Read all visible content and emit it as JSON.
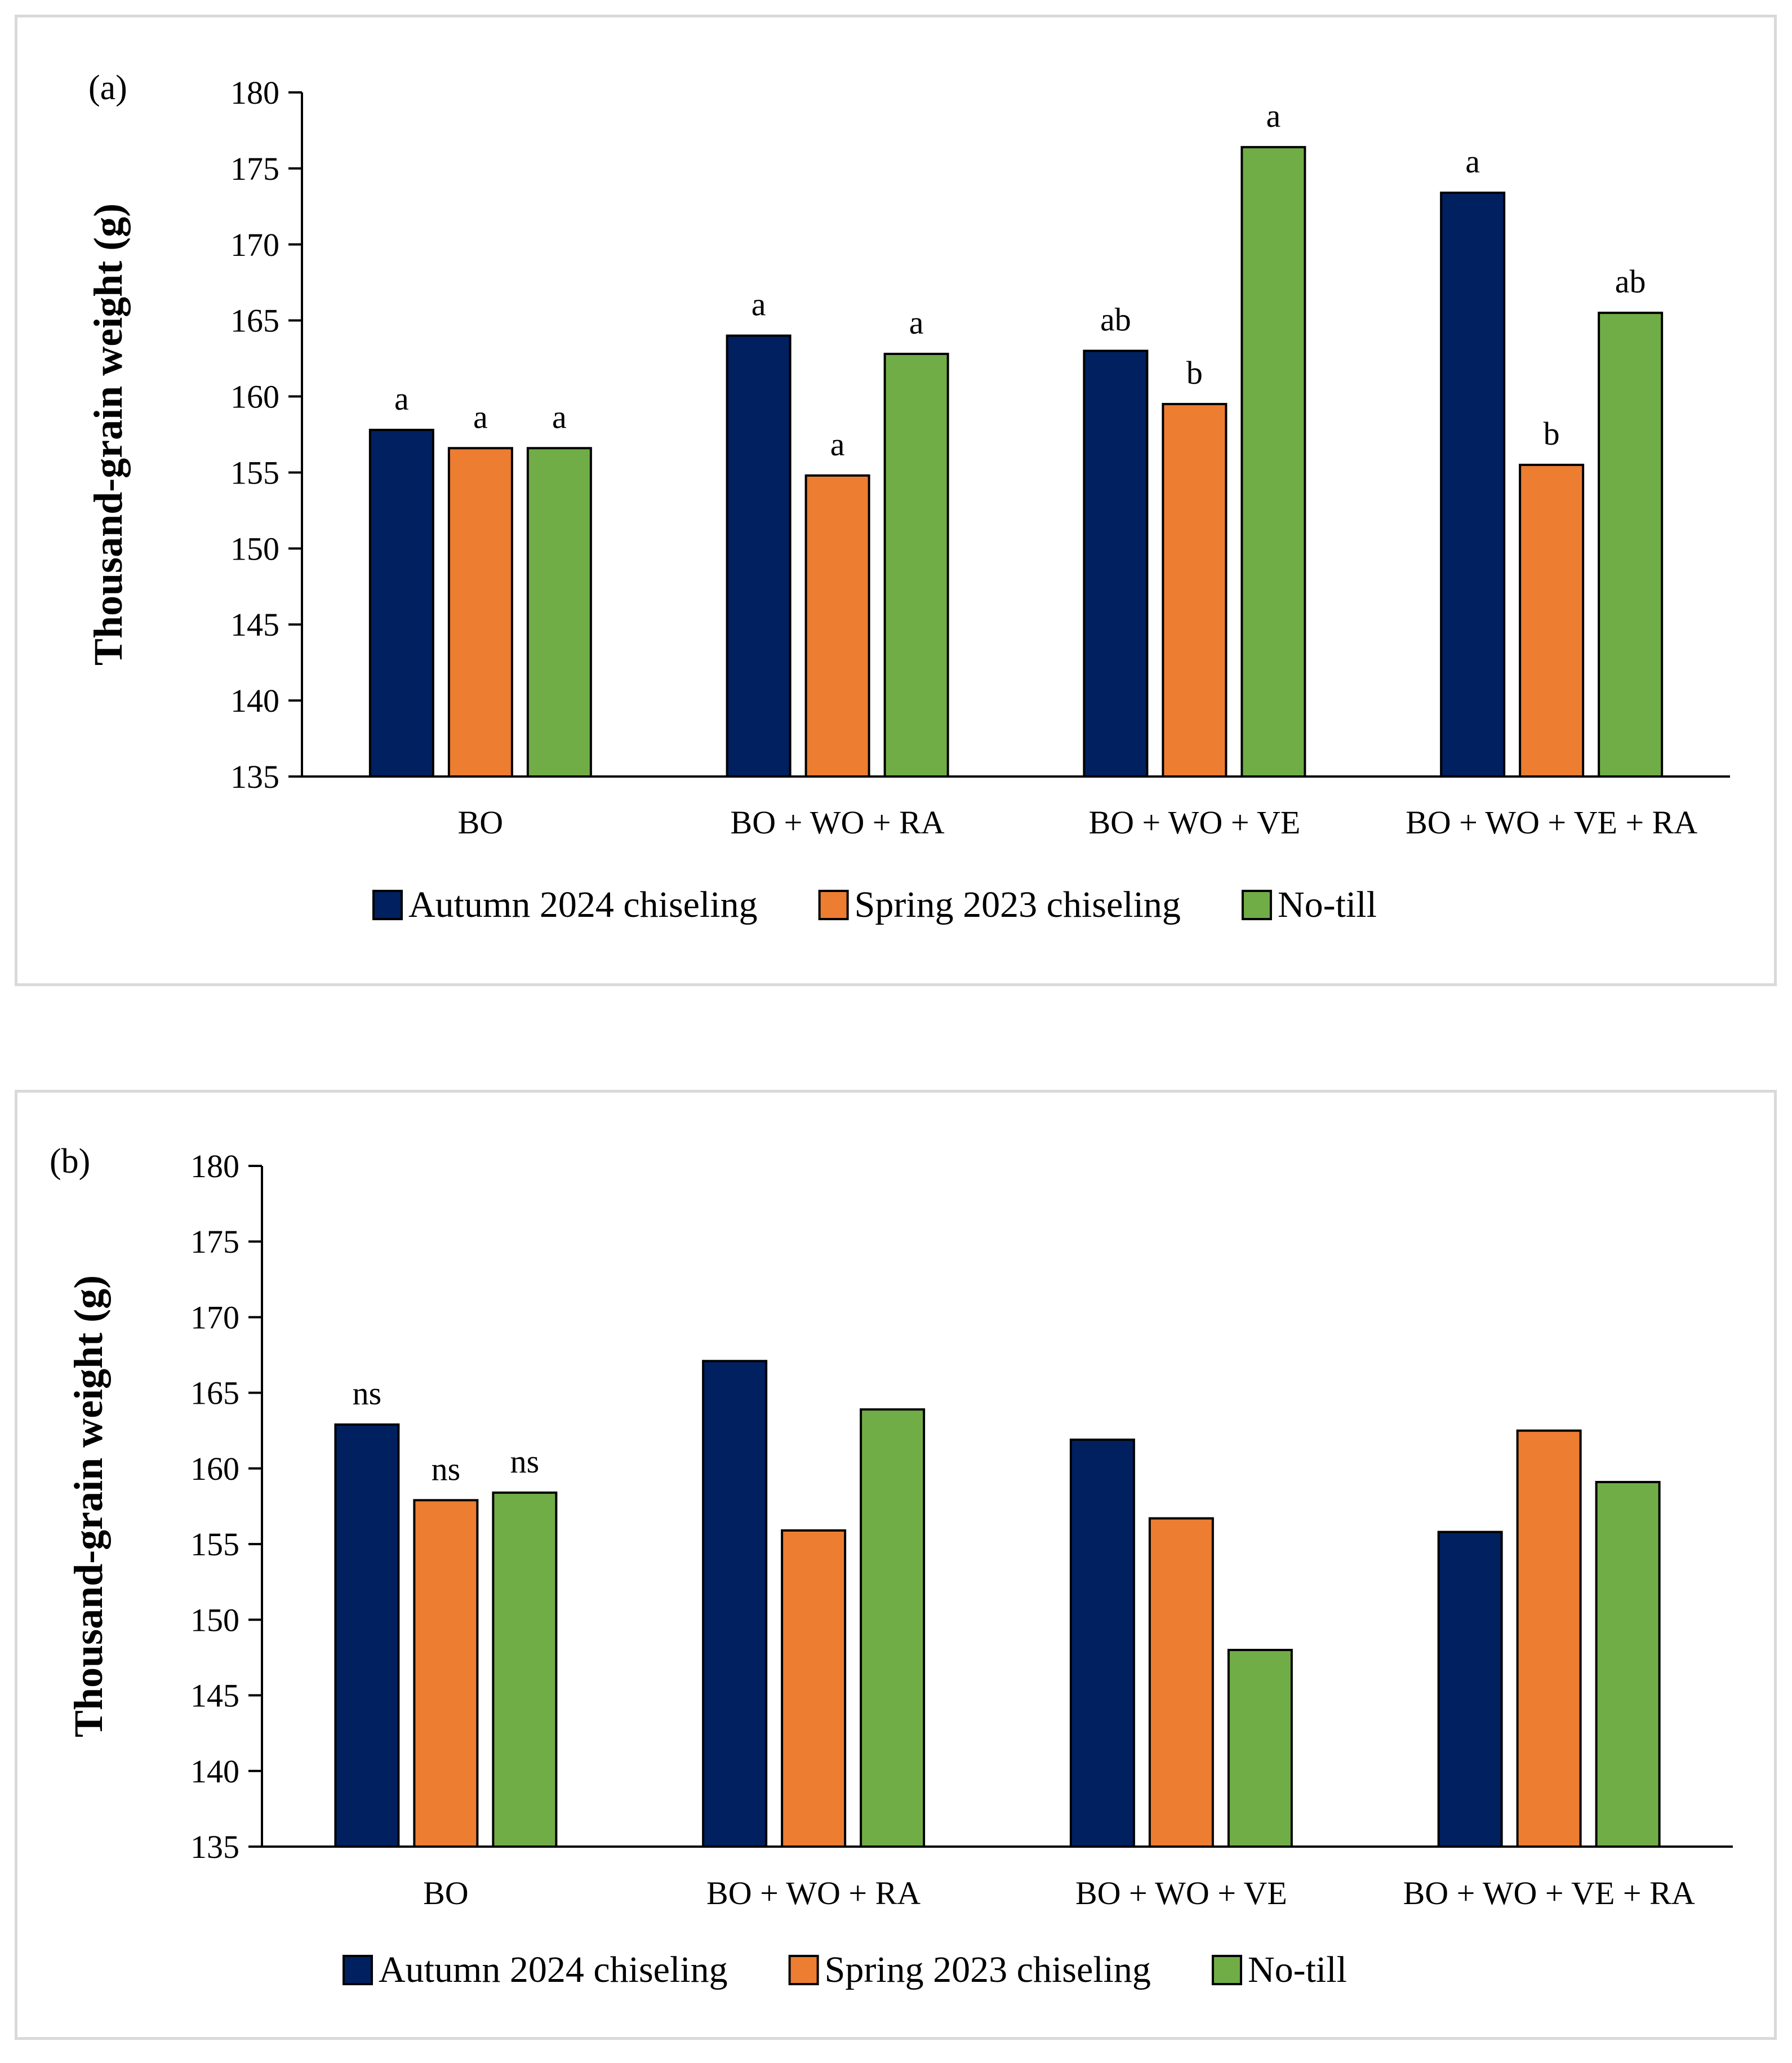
{
  "legend": [
    {
      "label": "Autumn 2024 chiseling",
      "color": "#002060"
    },
    {
      "label": "Spring 2023 chiseling",
      "color": "#ED7D31"
    },
    {
      "label": "No-till",
      "color": "#70AD47"
    }
  ],
  "chart_data": [
    {
      "type": "bar",
      "panel_label": "(a)",
      "ylabel": "Thousand-grain weight (g)",
      "ylim": [
        135,
        180
      ],
      "yticks": [
        135,
        140,
        145,
        150,
        155,
        160,
        165,
        170,
        175,
        180
      ],
      "categories": [
        "BO",
        "BO + WO + RA",
        "BO + WO + VE",
        "BO + WO + VE + RA"
      ],
      "series": [
        {
          "name": "Autumn 2024 chiseling",
          "color": "#002060",
          "values": [
            157.8,
            164.0,
            163.0,
            173.4
          ],
          "labels": [
            "a",
            "a",
            "ab",
            "a"
          ]
        },
        {
          "name": "Spring 2023 chiseling",
          "color": "#ED7D31",
          "values": [
            156.6,
            154.8,
            159.5,
            155.5
          ],
          "labels": [
            "a",
            "a",
            "b",
            "b"
          ]
        },
        {
          "name": "No-till",
          "color": "#70AD47",
          "values": [
            156.6,
            162.8,
            176.4,
            165.5
          ],
          "labels": [
            "a",
            "a",
            "a",
            "ab"
          ]
        }
      ],
      "legend_position": "bottom"
    },
    {
      "type": "bar",
      "panel_label": "(b)",
      "ylabel": "Thousand-grain weight (g)",
      "ylim": [
        135,
        180
      ],
      "yticks": [
        135,
        140,
        145,
        150,
        155,
        160,
        165,
        170,
        175,
        180
      ],
      "categories": [
        "BO",
        "BO + WO + RA",
        "BO + WO + VE",
        "BO + WO + VE + RA"
      ],
      "series": [
        {
          "name": "Autumn 2024 chiseling",
          "color": "#002060",
          "values": [
            162.9,
            167.1,
            161.9,
            155.8
          ],
          "labels": [
            "ns",
            "",
            "",
            ""
          ]
        },
        {
          "name": "Spring 2023 chiseling",
          "color": "#ED7D31",
          "values": [
            157.9,
            155.9,
            156.7,
            162.5
          ],
          "labels": [
            "ns",
            "",
            "",
            ""
          ]
        },
        {
          "name": "No-till",
          "color": "#70AD47",
          "values": [
            158.4,
            163.9,
            148.0,
            159.1
          ],
          "labels": [
            "ns",
            "",
            "",
            ""
          ]
        }
      ],
      "legend_position": "bottom"
    }
  ]
}
